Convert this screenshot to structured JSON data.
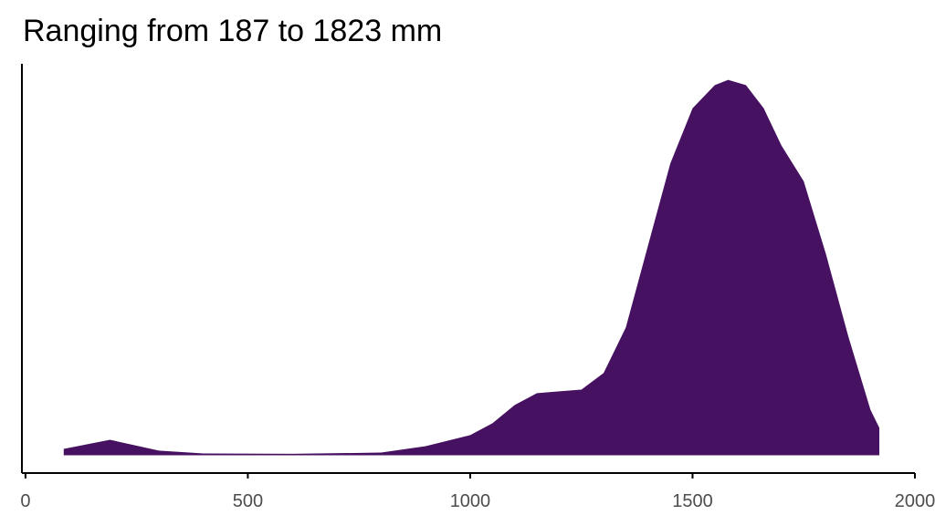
{
  "chart_data": {
    "type": "density",
    "title": "Ranging from 187 to 1823 mm",
    "color": "#461160",
    "x": [
      86,
      190,
      300,
      400,
      600,
      800,
      900,
      1000,
      1050,
      1100,
      1150,
      1200,
      1250,
      1300,
      1350,
      1400,
      1450,
      1500,
      1550,
      1580,
      1620,
      1660,
      1700,
      1750,
      1800,
      1850,
      1900,
      1920
    ],
    "values": [
      3.6e-05,
      8.7e-05,
      2.6e-05,
      1e-05,
      8e-06,
      1.5e-05,
      5.1e-05,
      0.000113,
      0.00018,
      0.000282,
      0.000349,
      0.000359,
      0.000369,
      0.000462,
      0.000718,
      0.00118,
      0.00164,
      0.00195,
      0.00208,
      0.00211,
      0.00208,
      0.00195,
      0.00174,
      0.00154,
      0.00113,
      0.00067,
      0.000256,
      0.000154
    ],
    "xlim": [
      -8,
      2000
    ],
    "xticks": [
      0,
      500,
      1000,
      1500,
      2000
    ],
    "ylim": [
      -0.0001,
      0.0022
    ]
  }
}
